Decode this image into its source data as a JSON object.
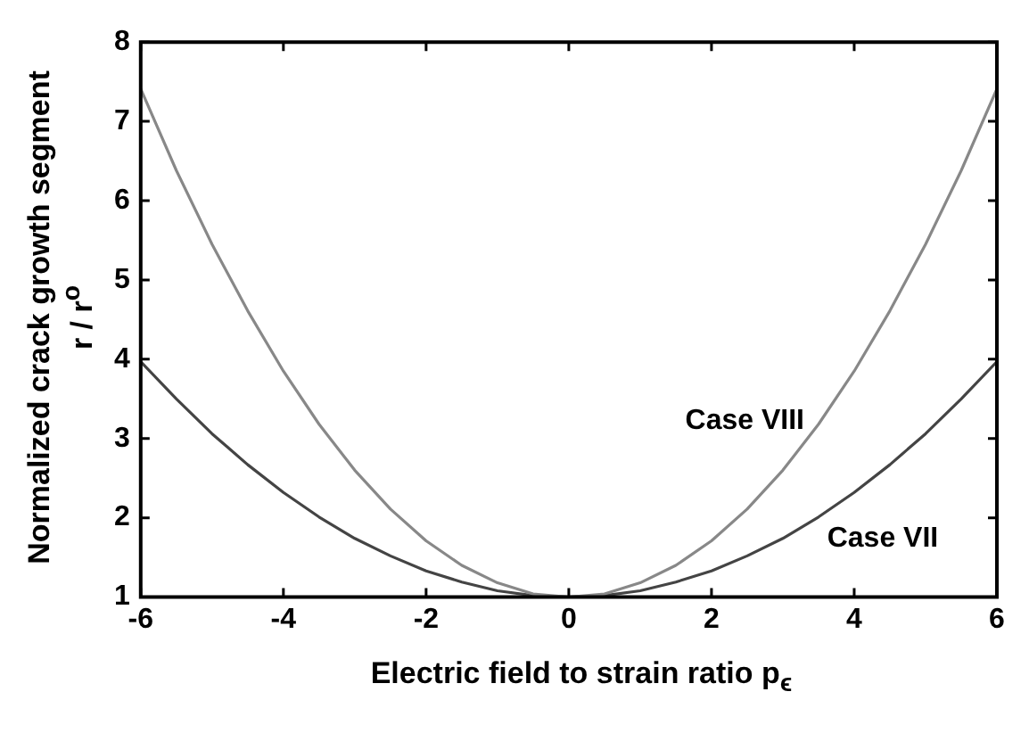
{
  "chart_data": {
    "type": "line",
    "xlabel": "Electric field to strain ratio p$_{ϵ}$",
    "ylabel": "Normalized crack growth segment\nr / r$^{o}$",
    "x": [
      -6,
      -5.5,
      -5,
      -4.5,
      -4,
      -3.5,
      -3,
      -2.5,
      -2,
      -1.5,
      -1,
      -0.5,
      0,
      0.5,
      1,
      1.5,
      2,
      2.5,
      3,
      3.5,
      4,
      4.5,
      5,
      5.5,
      6
    ],
    "series": [
      {
        "name": "Case VIII",
        "color": "#888888",
        "values": [
          7.41,
          6.38,
          5.45,
          4.61,
          3.85,
          3.18,
          2.6,
          2.11,
          1.71,
          1.4,
          1.18,
          1.04,
          1,
          1.04,
          1.18,
          1.4,
          1.71,
          2.11,
          2.6,
          3.18,
          3.85,
          4.61,
          5.45,
          6.38,
          7.41
        ]
      },
      {
        "name": "Case VII",
        "color": "#444444",
        "values": [
          3.97,
          3.5,
          3.06,
          2.67,
          2.32,
          2.01,
          1.74,
          1.52,
          1.33,
          1.19,
          1.08,
          1.02,
          1,
          1.02,
          1.08,
          1.19,
          1.33,
          1.52,
          1.74,
          2.01,
          2.32,
          2.67,
          3.06,
          3.5,
          3.97
        ]
      }
    ],
    "xlim": [
      -6,
      6
    ],
    "xticks": [
      -6,
      -4,
      -2,
      0,
      2,
      4,
      6
    ],
    "ylim": [
      1,
      8
    ],
    "yticks": [
      1,
      2,
      3,
      4,
      5,
      6,
      7,
      8
    ],
    "grid": false
  }
}
